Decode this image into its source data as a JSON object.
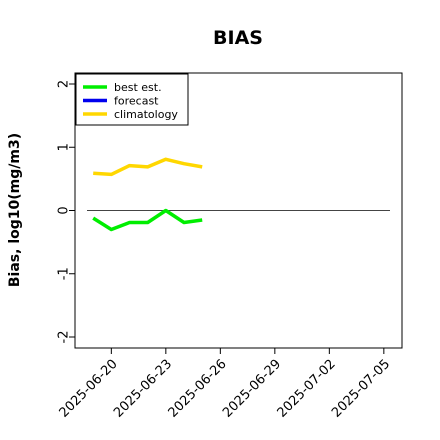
{
  "chart_data": {
    "type": "line",
    "title": "BIAS",
    "ylabel": "Bias, log10(mg/m3)",
    "xlabel": "",
    "ylim": [
      -2,
      2
    ],
    "yticks": [
      2,
      1,
      0,
      -1,
      -2
    ],
    "ytick_labels": [
      "2",
      "1",
      "0",
      "-1",
      "-2"
    ],
    "xlim": [
      "2025-06-18",
      "2025-07-06"
    ],
    "xticks": [
      "2025-06-20",
      "2025-06-23",
      "2025-06-26",
      "2025-06-29",
      "2025-07-02",
      "2025-07-05"
    ],
    "xtick_labels": [
      "2025-06-20",
      "2025-06-23",
      "2025-06-26",
      "2025-06-29",
      "2025-07-02",
      "2025-07-05"
    ],
    "highlighted_xtick": "2025-06-26",
    "highlight_color": "#228B22",
    "grid": false,
    "reference_line": 0,
    "legend_position": "top-left",
    "series": [
      {
        "name": "best est.",
        "color": "#00ee00",
        "x": [
          "2025-06-19",
          "2025-06-20",
          "2025-06-21",
          "2025-06-22",
          "2025-06-23",
          "2025-06-24",
          "2025-06-25"
        ],
        "values": [
          -0.12,
          -0.3,
          -0.19,
          -0.19,
          0.0,
          -0.19,
          -0.15
        ]
      },
      {
        "name": "forecast",
        "color": "#0000ee",
        "x": [],
        "values": []
      },
      {
        "name": "climatology",
        "color": "#ffd700",
        "x": [
          "2025-06-19",
          "2025-06-20",
          "2025-06-21",
          "2025-06-22",
          "2025-06-23",
          "2025-06-24",
          "2025-06-25"
        ],
        "values": [
          0.59,
          0.57,
          0.71,
          0.69,
          0.81,
          0.74,
          0.69
        ]
      }
    ]
  }
}
